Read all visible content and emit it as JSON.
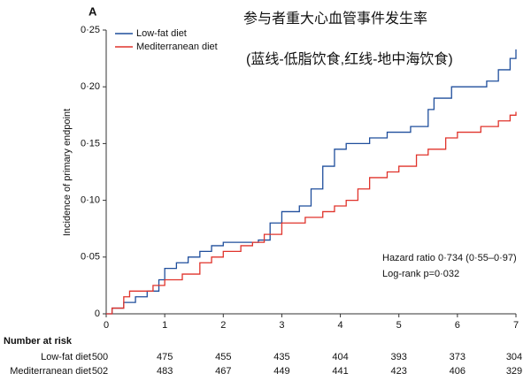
{
  "chart_data": {
    "type": "step",
    "panel_label": "A",
    "title_lines": [
      "参与者重大心血管事件发生率",
      "(蓝线-低脂饮食,红线-地中海饮食)"
    ],
    "ylabel": "Incidence of primary endpoint",
    "xlim": [
      0,
      7
    ],
    "xticks": [
      0,
      1,
      2,
      3,
      4,
      5,
      6,
      7
    ],
    "ylim": [
      0,
      0.25
    ],
    "yticks": [
      0,
      {
        "value": 0.05,
        "label": "0·05"
      },
      {
        "value": 0.1,
        "label": "0·10"
      },
      {
        "value": 0.15,
        "label": "0·15"
      },
      {
        "value": 0.2,
        "label": "0·20"
      },
      {
        "value": 0.25,
        "label": "0·25"
      }
    ],
    "legend": "top-left",
    "series": [
      {
        "name": "Low-fat diet",
        "color": "#1f4e9c",
        "x": [
          0,
          0.1,
          0.3,
          0.5,
          0.7,
          0.9,
          1.0,
          1.2,
          1.4,
          1.6,
          1.8,
          2.0,
          2.6,
          2.8,
          3.0,
          3.3,
          3.5,
          3.7,
          3.9,
          4.1,
          4.5,
          4.8,
          5.2,
          5.5,
          5.6,
          5.9,
          6.5,
          6.7,
          6.9,
          7.0
        ],
        "values": [
          0,
          0.005,
          0.01,
          0.015,
          0.02,
          0.03,
          0.04,
          0.045,
          0.05,
          0.055,
          0.06,
          0.063,
          0.065,
          0.08,
          0.09,
          0.095,
          0.11,
          0.13,
          0.145,
          0.15,
          0.155,
          0.16,
          0.165,
          0.18,
          0.19,
          0.2,
          0.205,
          0.215,
          0.225,
          0.233
        ]
      },
      {
        "name": "Mediterranean diet",
        "color": "#e0332b",
        "x": [
          0,
          0.1,
          0.3,
          0.4,
          0.8,
          1.0,
          1.3,
          1.6,
          1.8,
          2.0,
          2.3,
          2.5,
          2.7,
          3.0,
          3.4,
          3.7,
          3.9,
          4.1,
          4.3,
          4.5,
          4.8,
          5.0,
          5.3,
          5.5,
          5.8,
          6.0,
          6.4,
          6.7,
          6.9,
          7.0
        ],
        "values": [
          0,
          0.005,
          0.015,
          0.02,
          0.025,
          0.03,
          0.035,
          0.045,
          0.05,
          0.055,
          0.06,
          0.063,
          0.07,
          0.08,
          0.085,
          0.09,
          0.095,
          0.1,
          0.11,
          0.12,
          0.125,
          0.13,
          0.14,
          0.145,
          0.155,
          0.16,
          0.165,
          0.17,
          0.175,
          0.178
        ]
      }
    ],
    "annotations": [
      "Hazard ratio 0·734 (0·55–0·97)",
      "Log-rank p=0·032"
    ],
    "risk_table": {
      "title": "Number at risk",
      "rows": [
        {
          "name": "Low-fat diet",
          "values": [
            500,
            475,
            455,
            435,
            404,
            393,
            373,
            304
          ]
        },
        {
          "name": "Mediterranean diet",
          "values": [
            502,
            483,
            467,
            449,
            441,
            423,
            406,
            329
          ]
        }
      ]
    }
  }
}
